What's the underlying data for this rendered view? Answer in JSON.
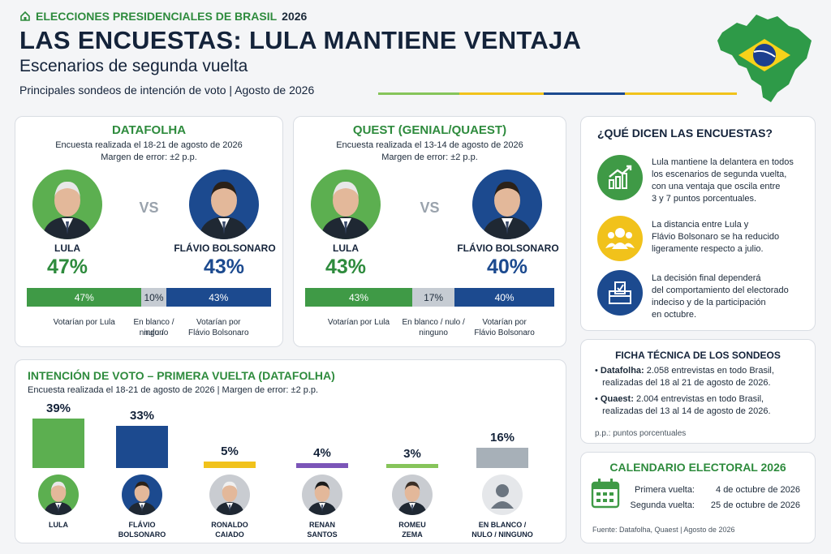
{
  "header": {
    "kicker": "ELECCIONES PRESIDENCIALES DE BRASIL",
    "kicker_year": "2026",
    "title": "LAS ENCUESTAS: LULA MANTIENE VENTAJA",
    "subtitle": "Escenarios de segunda vuelta",
    "subline": "Principales sondeos de intención de voto",
    "subline_date": "Agosto de 2026"
  },
  "colors": {
    "lula_green": "#3f9a46",
    "bolsonaro_blue": "#1c4a8f",
    "blank_gray": "#c6ccd3",
    "yellow": "#f1c21b",
    "purple": "#7b55b8",
    "light_green": "#86c45a",
    "gray": "#a7b0b8"
  },
  "polls": [
    {
      "title": "DATAFOLHA",
      "dates": "Encuesta realizada el 18-21 de agosto de 2026",
      "margin": "Margen de error: ±2 p.p.",
      "vs": "VS",
      "left_name": "LULA",
      "left_pct": "47%",
      "right_name": "FLÁVIO BOLSONARO",
      "right_pct": "43%",
      "bar": {
        "lula": 47,
        "blank": 10,
        "bolsonaro": 43,
        "lula_label": "47%",
        "blank_label": "10%",
        "bolsonaro_label": "43%"
      },
      "legend": {
        "lula": "Votarían por Lula",
        "blank_1": "En blanco / nulo /",
        "blank_2": "ninguno",
        "bolsonaro_1": "Votarían por",
        "bolsonaro_2": "Flávio Bolsonaro"
      }
    },
    {
      "title": "QUEST (GENIAL/QUAEST)",
      "dates": "Encuesta realizada el 13-14 de agosto de 2026",
      "margin": "Margen de error: ±2 p.p.",
      "vs": "VS",
      "left_name": "LULA",
      "left_pct": "43%",
      "right_name": "FLÁVIO BOLSONARO",
      "right_pct": "40%",
      "bar": {
        "lula": 43,
        "blank": 17,
        "bolsonaro": 40,
        "lula_label": "43%",
        "blank_label": "17%",
        "bolsonaro_label": "40%"
      },
      "legend": {
        "lula": "Votarían por Lula",
        "blank_1": "En blanco / nulo /",
        "blank_2": "ninguno",
        "bolsonaro_1": "Votarían por",
        "bolsonaro_2": "Flávio Bolsonaro"
      }
    }
  ],
  "side": {
    "title": "¿QUÉ DICEN LAS ENCUESTAS?",
    "items": [
      {
        "icon": "chart-up-icon",
        "lines": [
          "Lula mantiene la delantera en todos",
          "los escenarios de segunda vuelta,",
          "con una ventaja que oscila entre",
          "3 y 7 puntos porcentuales."
        ]
      },
      {
        "icon": "people-icon",
        "lines": [
          "La distancia entre Lula y",
          "Flávio Bolsonaro se ha reducido",
          "ligeramente respecto a julio."
        ]
      },
      {
        "icon": "ballot-box-icon",
        "lines": [
          "La decisión final dependerá",
          "del comportamiento del electorado",
          "indeciso y de la participación",
          "en octubre."
        ]
      }
    ]
  },
  "ficha": {
    "title": "FICHA TÉCNICA DE LOS SONDEOS",
    "items": [
      {
        "bold": "Datafolha:",
        "line1": " 2.058 entrevistas en todo Brasil,",
        "line2": "realizadas del 18 al 21 de agosto de 2026."
      },
      {
        "bold": "Quaest:",
        "line1": " 2.004 entrevistas en todo Brasil,",
        "line2": "realizadas del 13 al 14 de agosto de 2026."
      }
    ],
    "note": "p.p.: puntos porcentuales"
  },
  "calendar": {
    "title": "CALENDARIO ELECTORAL 2026",
    "rows": [
      {
        "label": "Primera vuelta:",
        "date": "4 de octubre de 2026"
      },
      {
        "label": "Segunda vuelta:",
        "date": "25 de octubre de 2026"
      }
    ],
    "source": "Fuente: Datafolha, Quaest | Agosto de 2026"
  },
  "first_round": {
    "title": "INTENCIÓN DE VOTO – PRIMERA VUELTA (DATAFOLHA)",
    "subtitle": "Encuesta realizada el 18-21 de agosto de 2026",
    "margin": "Margen de error: ±2 p.p."
  },
  "chart_data": {
    "type": "bar",
    "title": "INTENCIÓN DE VOTO – PRIMERA VUELTA (DATAFOLHA)",
    "categories": [
      "LULA",
      "FLÁVIO BOLSONARO",
      "RONALDO CAIADO",
      "RENAN SANTOS",
      "ROMEU ZEMA",
      "EN BLANCO / NULO / NINGUNO"
    ],
    "category_lines": [
      [
        "LULA"
      ],
      [
        "FLÁVIO",
        "BOLSONARO"
      ],
      [
        "RONALDO",
        "CAIADO"
      ],
      [
        "RENAN",
        "SANTOS"
      ],
      [
        "ROMEU",
        "ZEMA"
      ],
      [
        "EN BLANCO /",
        "NULO / NINGUNO"
      ]
    ],
    "values": [
      39,
      33,
      5,
      4,
      3,
      16
    ],
    "value_labels": [
      "39%",
      "33%",
      "5%",
      "4%",
      "3%",
      "16%"
    ],
    "colors": [
      "#5caf50",
      "#1c4a8f",
      "#f1c21b",
      "#7b55b8",
      "#86c45a",
      "#a7b0b8"
    ],
    "ylim": [
      0,
      40
    ]
  }
}
